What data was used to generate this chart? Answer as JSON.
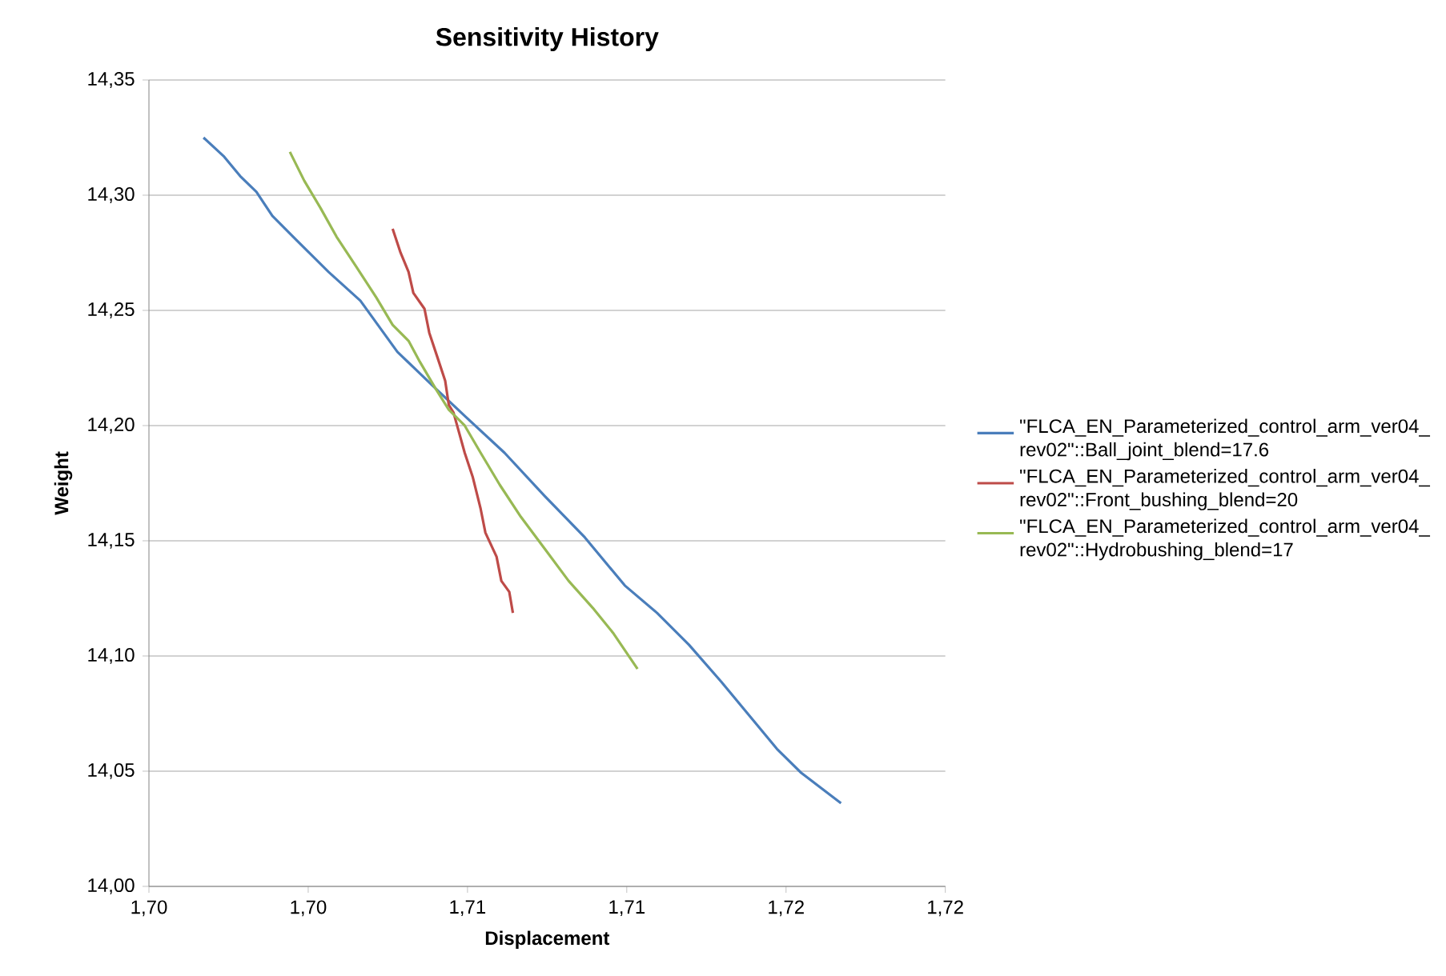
{
  "chart_data": {
    "type": "line",
    "title": "Sensitivity History",
    "xlabel": "Displacement",
    "ylabel": "Weight",
    "xlim": [
      1.7,
      1.72
    ],
    "ylim": [
      14.0,
      14.35
    ],
    "xticks": [
      {
        "value": 1.7,
        "label": "1,70"
      },
      {
        "value": 1.704,
        "label": "1,70"
      },
      {
        "value": 1.708,
        "label": "1,71"
      },
      {
        "value": 1.712,
        "label": "1,71"
      },
      {
        "value": 1.716,
        "label": "1,72"
      },
      {
        "value": 1.72,
        "label": "1,72"
      }
    ],
    "yticks": [
      {
        "value": 14.0,
        "label": "14,00"
      },
      {
        "value": 14.05,
        "label": "14,05"
      },
      {
        "value": 14.1,
        "label": "14,10"
      },
      {
        "value": 14.15,
        "label": "14,15"
      },
      {
        "value": 14.2,
        "label": "14,20"
      },
      {
        "value": 14.25,
        "label": "14,25"
      },
      {
        "value": 14.3,
        "label": "14,30"
      },
      {
        "value": 14.35,
        "label": "14,35"
      }
    ],
    "grid": "y",
    "legend": "right",
    "marker": "none",
    "line_style": "solid",
    "series": [
      {
        "name": "\"FLCA_EN_Parameterized_control_arm_ver04_rev02\"::Ball_joint_blend=17.6",
        "color": "#4a7ebb",
        "x": [
          1.70137,
          1.70189,
          1.70229,
          1.7027,
          1.7031,
          1.7037,
          1.70451,
          1.70531,
          1.70624,
          1.70712,
          1.70793,
          1.70893,
          1.70994,
          1.71095,
          1.71195,
          1.71276,
          1.71356,
          1.71437,
          1.71517,
          1.71577,
          1.71638,
          1.71738
        ],
        "values": [
          14.325,
          14.3167,
          14.3083,
          14.3014,
          14.291,
          14.2806,
          14.2667,
          14.2542,
          14.232,
          14.2174,
          14.2042,
          14.1882,
          14.1694,
          14.1514,
          14.1306,
          14.1187,
          14.1049,
          14.0889,
          14.0722,
          14.0597,
          14.0493,
          14.0361
        ]
      },
      {
        "name": "\"FLCA_EN_Parameterized_control_arm_ver04_rev02\"::Front_bushing_blend=20",
        "color": "#be4b48",
        "x": [
          1.70612,
          1.70632,
          1.70652,
          1.70664,
          1.70692,
          1.70704,
          1.70724,
          1.70744,
          1.70753,
          1.70765,
          1.70793,
          1.70813,
          1.70833,
          1.70845,
          1.70873,
          1.70885,
          1.70905,
          1.70914
        ],
        "values": [
          14.2854,
          14.275,
          14.2667,
          14.2576,
          14.2507,
          14.2403,
          14.2299,
          14.2194,
          14.209,
          14.2056,
          14.1882,
          14.1778,
          14.1639,
          14.1535,
          14.1431,
          14.1326,
          14.1278,
          14.1187
        ]
      },
      {
        "name": "\"FLCA_EN_Parameterized_control_arm_ver04_rev02\"::Hydrobushing_blend=17",
        "color": "#98b954",
        "x": [
          1.70354,
          1.7039,
          1.70431,
          1.70471,
          1.70519,
          1.70571,
          1.70612,
          1.70652,
          1.7068,
          1.7072,
          1.70753,
          1.70793,
          1.70833,
          1.70881,
          1.70934,
          1.70994,
          1.71054,
          1.71115,
          1.71167,
          1.71227
        ],
        "values": [
          14.3188,
          14.3063,
          14.2944,
          14.282,
          14.2694,
          14.2556,
          14.2437,
          14.2368,
          14.2278,
          14.216,
          14.2069,
          14.2,
          14.1882,
          14.1743,
          14.1604,
          14.1465,
          14.1326,
          14.1208,
          14.1097,
          14.0944
        ]
      }
    ]
  }
}
